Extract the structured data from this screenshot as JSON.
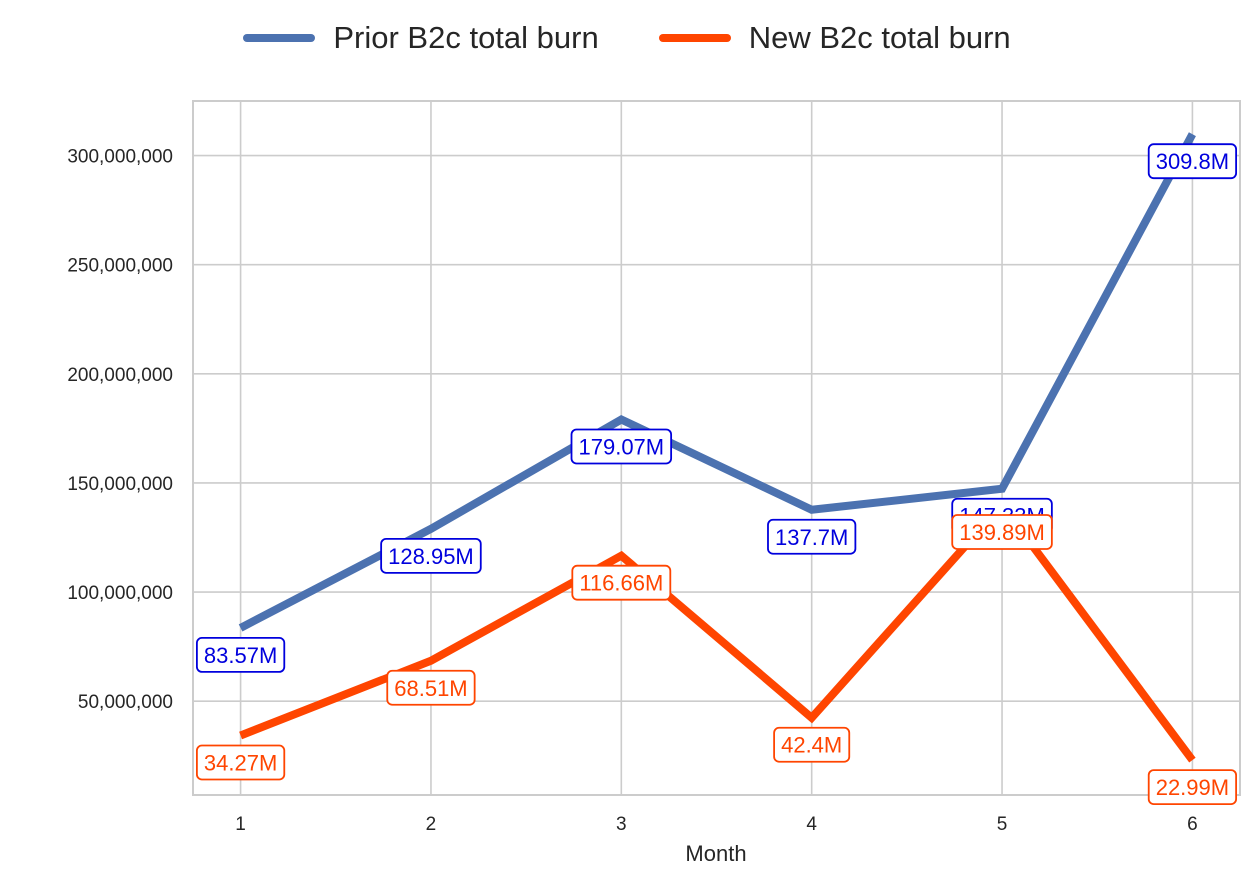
{
  "chart_data": {
    "type": "line",
    "xlabel": "Month",
    "ylabel": "",
    "x": [
      1,
      2,
      3,
      4,
      5,
      6
    ],
    "xlim": [
      0.75,
      6.25
    ],
    "ylim": [
      7000000,
      325000000
    ],
    "yticks": [
      50000000,
      100000000,
      150000000,
      200000000,
      250000000,
      300000000
    ],
    "ytick_labels": [
      "50,000,000",
      "100,000,000",
      "150,000,000",
      "200,000,000",
      "250,000,000",
      "300,000,000"
    ],
    "xtick_labels": [
      "1",
      "2",
      "3",
      "4",
      "5",
      "6"
    ],
    "grid": true,
    "legend_position": "top-center",
    "series": [
      {
        "name": "Prior B2c total burn",
        "color": "#4c72b0",
        "label_color": "#0000dd",
        "values": [
          83570000,
          128950000,
          179070000,
          137700000,
          147330000,
          309800000
        ],
        "labels": [
          "83.57M",
          "128.95M",
          "179.07M",
          "137.7M",
          "147.33M",
          "309.8M"
        ]
      },
      {
        "name": "New B2c total burn",
        "color": "#ff4500",
        "label_color": "#ff4500",
        "values": [
          34270000,
          68510000,
          116660000,
          42400000,
          139890000,
          22990000
        ],
        "labels": [
          "34.27M",
          "68.51M",
          "116.66M",
          "42.4M",
          "139.89M",
          "22.99M"
        ]
      }
    ]
  }
}
